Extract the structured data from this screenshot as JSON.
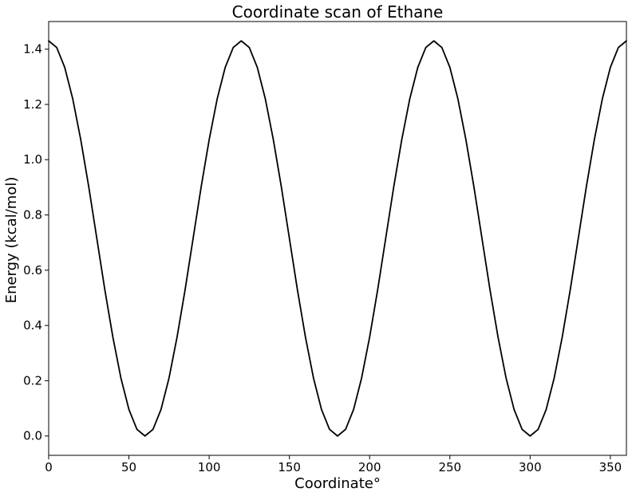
{
  "chart_data": {
    "type": "line",
    "title": "Coordinate scan of Ethane",
    "xlabel": "Coordinate°",
    "ylabel": "Energy (kcal/mol)",
    "xlim": [
      0,
      360
    ],
    "ylim": [
      -0.07,
      1.5
    ],
    "x_ticks": [
      0,
      50,
      100,
      150,
      200,
      250,
      300,
      350
    ],
    "y_ticks": [
      0.0,
      0.2,
      0.4,
      0.6,
      0.8,
      1.0,
      1.2,
      1.4
    ],
    "y_tick_labels": [
      "0.0",
      "0.2",
      "0.4",
      "0.6",
      "0.8",
      "1.0",
      "1.2",
      "1.4"
    ],
    "grid": false,
    "legend": "none",
    "series": [
      {
        "color": "#000000",
        "x": [
          0,
          5,
          10,
          15,
          20,
          25,
          30,
          35,
          40,
          45,
          50,
          55,
          60,
          65,
          70,
          75,
          80,
          85,
          90,
          95,
          100,
          105,
          110,
          115,
          120,
          125,
          130,
          135,
          140,
          145,
          150,
          155,
          160,
          165,
          170,
          175,
          180,
          185,
          190,
          195,
          200,
          205,
          210,
          215,
          220,
          225,
          230,
          235,
          240,
          245,
          250,
          255,
          260,
          265,
          270,
          275,
          280,
          285,
          290,
          295,
          300,
          305,
          310,
          315,
          320,
          325,
          330,
          335,
          340,
          345,
          350,
          355,
          360
        ],
        "y": [
          1.43,
          1.406,
          1.334,
          1.22,
          1.072,
          0.901,
          0.715,
          0.529,
          0.358,
          0.21,
          0.096,
          0.024,
          0.0,
          0.024,
          0.096,
          0.21,
          0.358,
          0.529,
          0.715,
          0.901,
          1.072,
          1.22,
          1.334,
          1.406,
          1.43,
          1.406,
          1.334,
          1.22,
          1.072,
          0.901,
          0.715,
          0.529,
          0.358,
          0.21,
          0.096,
          0.024,
          0.0,
          0.024,
          0.096,
          0.21,
          0.358,
          0.529,
          0.715,
          0.901,
          1.072,
          1.22,
          1.334,
          1.406,
          1.43,
          1.406,
          1.334,
          1.22,
          1.072,
          0.901,
          0.715,
          0.529,
          0.358,
          0.21,
          0.096,
          0.024,
          0.0,
          0.024,
          0.096,
          0.21,
          0.358,
          0.529,
          0.715,
          0.901,
          1.072,
          1.22,
          1.334,
          1.406,
          1.43
        ]
      }
    ]
  }
}
